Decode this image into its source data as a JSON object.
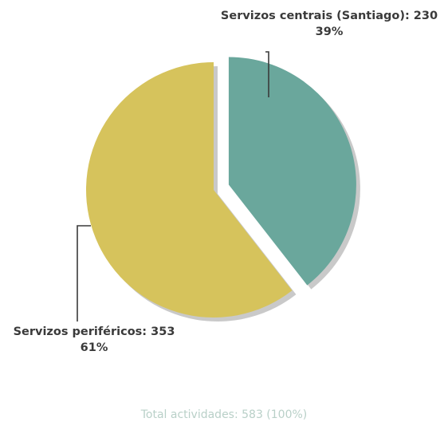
{
  "chart_data": {
    "type": "pie",
    "title": "",
    "slices": [
      {
        "label": "Servizos centrais (Santiago): 230",
        "value": 230,
        "percent_label": "39%",
        "color": "#6aa79c",
        "exploded": true
      },
      {
        "label": "Servizos periféricos: 353",
        "value": 353,
        "percent_label": "61%",
        "color": "#d6c35c",
        "exploded": false
      }
    ],
    "total_label": "Total actividades: 583 (100%)",
    "legend": "none",
    "start_angle": "top",
    "direction": "clockwise"
  }
}
